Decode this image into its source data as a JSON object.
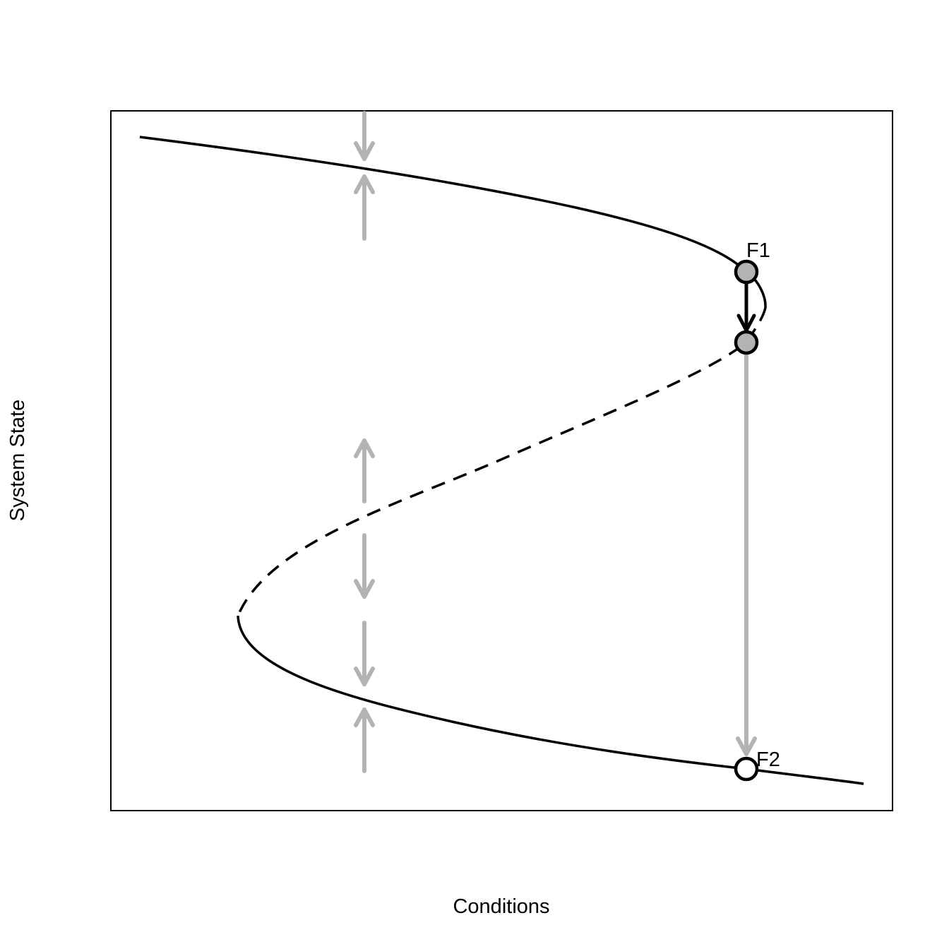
{
  "axes": {
    "xlabel": "Conditions",
    "ylabel": "System State"
  },
  "points": {
    "f1_label": "F1",
    "f2_label": "F2"
  },
  "colors": {
    "curve": "#000000",
    "arrow_gray": "#b3b3b3",
    "point_fill_gray": "#b3b3b3",
    "point_fill_white": "#ffffff"
  }
}
